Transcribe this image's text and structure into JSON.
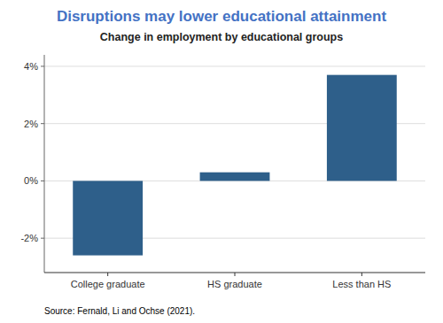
{
  "chart_data": {
    "type": "bar",
    "title": "Disruptions may lower educational attainment",
    "subtitle": "Change in employment by educational groups",
    "source": "Source: Fernald, Li and Ochse (2021).",
    "categories": [
      "College graduate",
      "HS graduate",
      "Less than HS"
    ],
    "values": [
      -2.6,
      0.3,
      3.7
    ],
    "color": "#2E5F8A",
    "ylim": [
      -3.2,
      4.4
    ],
    "yticks": [
      {
        "value": -2,
        "label": "-2%"
      },
      {
        "value": 0,
        "label": "0%"
      },
      {
        "value": 2,
        "label": "2%"
      },
      {
        "value": 4,
        "label": "4%"
      }
    ],
    "grid": true
  }
}
